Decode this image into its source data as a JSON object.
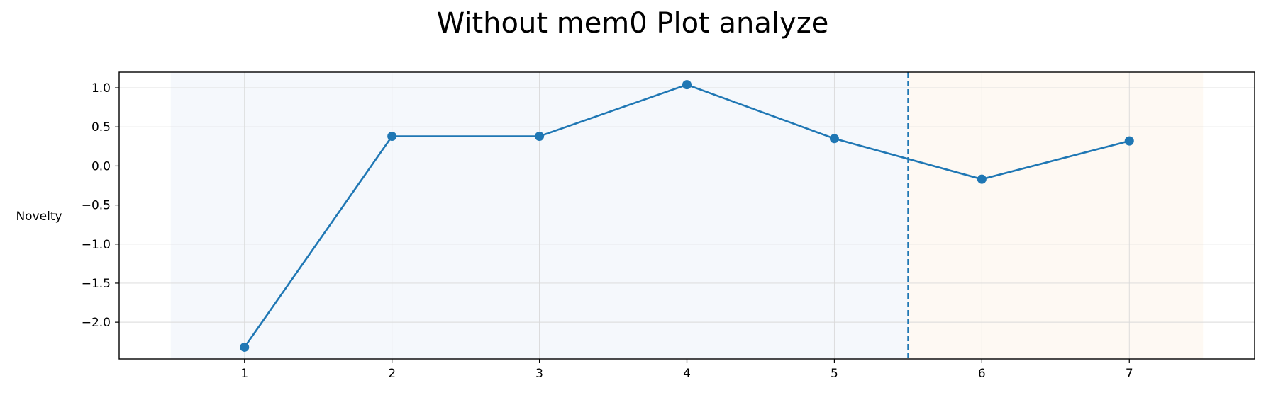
{
  "chart_data": {
    "type": "line",
    "title": "Without mem0 Plot analyze",
    "xlabel": "",
    "ylabel": "Novelty",
    "x": [
      1,
      2,
      3,
      4,
      5,
      6,
      7
    ],
    "series": [
      {
        "values": [
          -2.32,
          0.38,
          0.38,
          1.04,
          0.35,
          -0.17,
          0.32
        ]
      }
    ],
    "xlim": [
      0.15,
      7.85
    ],
    "ylim": [
      -2.47,
      1.2
    ],
    "xticks": [
      1,
      2,
      3,
      4,
      5,
      6,
      7
    ],
    "xtick_labels": [
      "1",
      "2",
      "3",
      "4",
      "5",
      "6",
      "7"
    ],
    "yticks": [
      1.0,
      0.5,
      0.0,
      -0.5,
      -1.0,
      -1.5,
      -2.0
    ],
    "ytick_labels": [
      "1.0",
      "0.5",
      "0.0",
      "−0.5",
      "−1.0",
      "−1.5",
      "−2.0"
    ],
    "grid": true,
    "shaded_regions": [
      {
        "x_start": 0.5,
        "x_end": 5.5,
        "color": "#f5f8fc"
      },
      {
        "x_start": 5.5,
        "x_end": 7.5,
        "color": "#fef9f3"
      }
    ],
    "vertical_line": {
      "x": 5.5,
      "style": "dashed",
      "color": "#1f77b4"
    },
    "line_color": "#1f77b4"
  }
}
